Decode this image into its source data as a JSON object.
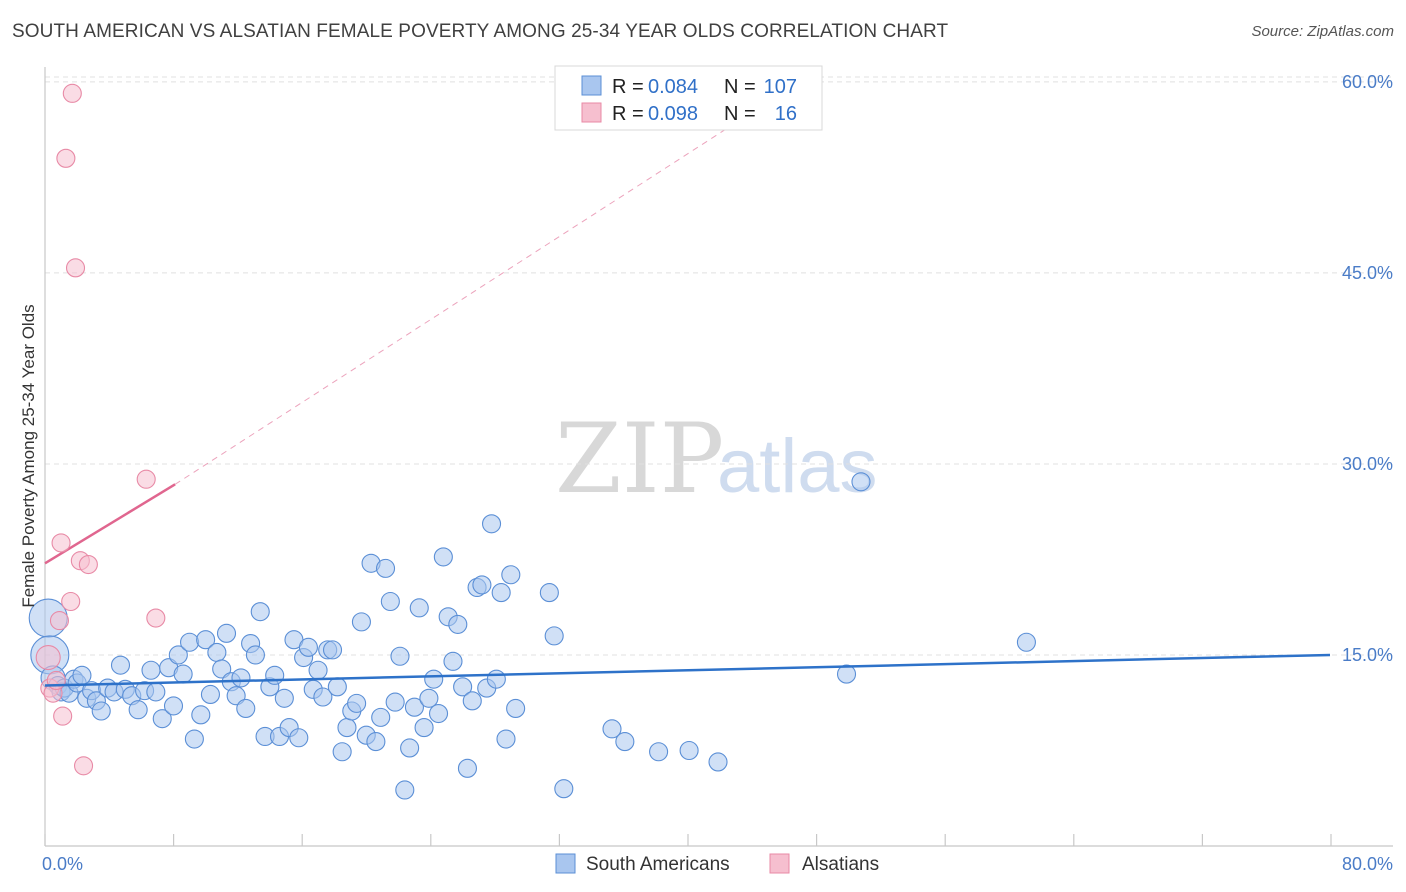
{
  "header": {
    "title": "SOUTH AMERICAN VS ALSATIAN FEMALE POVERTY AMONG 25-34 YEAR OLDS CORRELATION CHART",
    "source": "Source: ZipAtlas.com"
  },
  "watermark": {
    "zip": "ZIP",
    "atlas": "atlas"
  },
  "colors": {
    "blue_fill": "#a9c6ef",
    "blue_stroke": "#5b8fd6",
    "blue_line": "#2e72c9",
    "pink_fill": "#f6bfcf",
    "pink_stroke": "#e88aa6",
    "pink_line": "#e0668f",
    "grid": "#e0e0e0",
    "axis_label": "#4a7cc7"
  },
  "legend": {
    "rows": [
      {
        "r_label": "R =",
        "r_value": "0.084",
        "n_label": "N =",
        "n_value": "107"
      },
      {
        "r_label": "R =",
        "r_value": "0.098",
        "n_label": "N =",
        "n_value": "16"
      }
    ]
  },
  "bottom_legend": {
    "series1": "South Americans",
    "series2": "Alsatians"
  },
  "chart_data": {
    "type": "scatter",
    "title": "SOUTH AMERICAN VS ALSATIAN FEMALE POVERTY AMONG 25-34 YEAR OLDS CORRELATION CHART",
    "xlabel": "",
    "ylabel": "Female Poverty Among 25-34 Year Olds",
    "xlim": [
      0,
      80
    ],
    "ylim": [
      0,
      63
    ],
    "x_tick_labels": [
      "0.0%",
      "80.0%"
    ],
    "y_ticks": [
      15,
      30,
      45,
      60
    ],
    "y_tick_labels": [
      "15.0%",
      "30.0%",
      "45.0%",
      "60.0%"
    ],
    "grid": true,
    "legend_placement": "top-center",
    "series": [
      {
        "name": "South Americans",
        "r": 0.084,
        "n": 107,
        "trend": {
          "x": [
            0,
            80
          ],
          "y": [
            12.6,
            15.0
          ],
          "style": "solid"
        },
        "points": [
          [
            0.2,
            17.9,
            3
          ],
          [
            0.3,
            15.0,
            3
          ],
          [
            0.5,
            13.2,
            2
          ],
          [
            0.8,
            12.6,
            1
          ],
          [
            1.0,
            12.1,
            1
          ],
          [
            1.2,
            12.4,
            1
          ],
          [
            1.5,
            12.0,
            1
          ],
          [
            1.8,
            13.1,
            1
          ],
          [
            2.0,
            12.8,
            1
          ],
          [
            2.3,
            13.4,
            1
          ],
          [
            2.6,
            11.6,
            1
          ],
          [
            2.9,
            12.2,
            1
          ],
          [
            3.2,
            11.4,
            1
          ],
          [
            3.5,
            10.6,
            1
          ],
          [
            3.9,
            12.4,
            1
          ],
          [
            4.3,
            12.1,
            1
          ],
          [
            4.7,
            14.2,
            1
          ],
          [
            5.0,
            12.3,
            1
          ],
          [
            5.4,
            11.8,
            1
          ],
          [
            5.8,
            10.7,
            1
          ],
          [
            6.2,
            12.2,
            1
          ],
          [
            6.6,
            13.8,
            1
          ],
          [
            6.9,
            12.1,
            1
          ],
          [
            7.3,
            10.0,
            1
          ],
          [
            7.7,
            14.0,
            1
          ],
          [
            8.0,
            11.0,
            1
          ],
          [
            8.3,
            15.0,
            1
          ],
          [
            8.6,
            13.5,
            1
          ],
          [
            9.0,
            16.0,
            1
          ],
          [
            9.3,
            8.4,
            1
          ],
          [
            9.7,
            10.3,
            1
          ],
          [
            10.0,
            16.2,
            1
          ],
          [
            10.3,
            11.9,
            1
          ],
          [
            10.7,
            15.2,
            1
          ],
          [
            11.0,
            13.9,
            1
          ],
          [
            11.3,
            16.7,
            1
          ],
          [
            11.6,
            12.9,
            1
          ],
          [
            11.9,
            11.8,
            1
          ],
          [
            12.2,
            13.2,
            1
          ],
          [
            12.5,
            10.8,
            1
          ],
          [
            12.8,
            15.9,
            1
          ],
          [
            13.1,
            15.0,
            1
          ],
          [
            13.4,
            18.4,
            1
          ],
          [
            13.7,
            8.6,
            1
          ],
          [
            14.0,
            12.5,
            1
          ],
          [
            14.3,
            13.4,
            1
          ],
          [
            14.6,
            8.6,
            1
          ],
          [
            14.9,
            11.6,
            1
          ],
          [
            15.2,
            9.3,
            1
          ],
          [
            15.5,
            16.2,
            1
          ],
          [
            15.8,
            8.5,
            1
          ],
          [
            16.1,
            14.8,
            1
          ],
          [
            16.4,
            15.6,
            1
          ],
          [
            16.7,
            12.3,
            1
          ],
          [
            17.0,
            13.8,
            1
          ],
          [
            17.3,
            11.7,
            1
          ],
          [
            17.6,
            15.4,
            1
          ],
          [
            17.9,
            15.4,
            1
          ],
          [
            18.2,
            12.5,
            1
          ],
          [
            18.5,
            7.4,
            1
          ],
          [
            18.8,
            9.3,
            1
          ],
          [
            19.1,
            10.6,
            1
          ],
          [
            19.4,
            11.2,
            1
          ],
          [
            19.7,
            17.6,
            1
          ],
          [
            20.0,
            8.7,
            1
          ],
          [
            20.3,
            22.2,
            1
          ],
          [
            20.6,
            8.2,
            1
          ],
          [
            20.9,
            10.1,
            1
          ],
          [
            21.2,
            21.8,
            1
          ],
          [
            21.5,
            19.2,
            1
          ],
          [
            21.8,
            11.3,
            1
          ],
          [
            22.1,
            14.9,
            1
          ],
          [
            22.4,
            4.4,
            1
          ],
          [
            22.7,
            7.7,
            1
          ],
          [
            23.0,
            10.9,
            1
          ],
          [
            23.3,
            18.7,
            1
          ],
          [
            23.6,
            9.3,
            1
          ],
          [
            23.9,
            11.6,
            1
          ],
          [
            24.2,
            13.1,
            1
          ],
          [
            24.5,
            10.4,
            1
          ],
          [
            24.8,
            22.7,
            1
          ],
          [
            25.1,
            18.0,
            1
          ],
          [
            25.4,
            14.5,
            1
          ],
          [
            25.7,
            17.4,
            1
          ],
          [
            26.0,
            12.5,
            1
          ],
          [
            26.3,
            6.1,
            1
          ],
          [
            26.6,
            11.4,
            1
          ],
          [
            26.9,
            20.3,
            1
          ],
          [
            27.2,
            20.5,
            1
          ],
          [
            27.5,
            12.4,
            1
          ],
          [
            27.8,
            25.3,
            1
          ],
          [
            28.1,
            13.1,
            1
          ],
          [
            28.4,
            19.9,
            1
          ],
          [
            28.7,
            8.4,
            1
          ],
          [
            29.0,
            21.3,
            1
          ],
          [
            29.3,
            10.8,
            1
          ],
          [
            31.4,
            19.9,
            1
          ],
          [
            31.7,
            16.5,
            1
          ],
          [
            32.3,
            4.5,
            1
          ],
          [
            35.3,
            9.2,
            1
          ],
          [
            36.1,
            8.2,
            1
          ],
          [
            38.2,
            7.4,
            1
          ],
          [
            40.1,
            7.5,
            1
          ],
          [
            41.9,
            6.6,
            1
          ],
          [
            49.9,
            13.5,
            1
          ],
          [
            50.8,
            28.6,
            1
          ],
          [
            61.1,
            16.0,
            1
          ]
        ]
      },
      {
        "name": "Alsatians",
        "r": 0.098,
        "n": 16,
        "trend": {
          "x": [
            0,
            8.1
          ],
          "y": [
            22.2,
            28.4
          ],
          "style": "solid",
          "extended_x": [
            8.1,
            44.0
          ],
          "extended_y": [
            28.4,
            57.6
          ],
          "extended_style": "dashed"
        },
        "points": [
          [
            0.2,
            14.8,
            2
          ],
          [
            0.3,
            12.4,
            1
          ],
          [
            0.5,
            12.0,
            1
          ],
          [
            0.7,
            13.0,
            1
          ],
          [
            0.9,
            17.7,
            1
          ],
          [
            1.0,
            23.8,
            1
          ],
          [
            1.1,
            10.2,
            1
          ],
          [
            1.3,
            54.0,
            1
          ],
          [
            1.6,
            19.2,
            1
          ],
          [
            1.7,
            59.1,
            1
          ],
          [
            1.9,
            45.4,
            1
          ],
          [
            2.2,
            22.4,
            1
          ],
          [
            2.4,
            6.3,
            1
          ],
          [
            2.7,
            22.1,
            1
          ],
          [
            6.3,
            28.8,
            1
          ],
          [
            6.9,
            17.9,
            1
          ]
        ]
      }
    ]
  }
}
